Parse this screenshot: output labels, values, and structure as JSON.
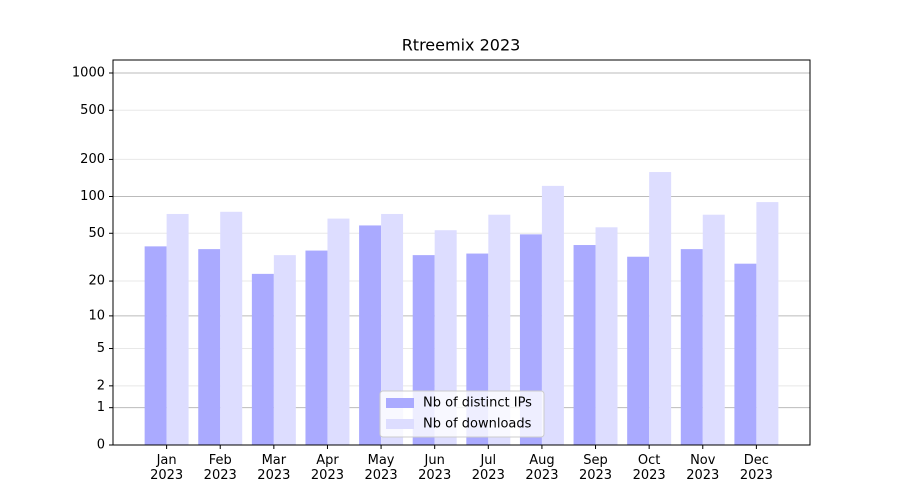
{
  "chart_data": {
    "type": "bar",
    "title": "Rtreemix 2023",
    "categories": [
      "Jan\n2023",
      "Feb\n2023",
      "Mar\n2023",
      "Apr\n2023",
      "May\n2023",
      "Jun\n2023",
      "Jul\n2023",
      "Aug\n2023",
      "Sep\n2023",
      "Oct\n2023",
      "Nov\n2023",
      "Dec\n2023"
    ],
    "series": [
      {
        "name": "Nb of distinct IPs",
        "color": "#aaaaff",
        "values": [
          39,
          37,
          23,
          36,
          58,
          33,
          34,
          49,
          40,
          32,
          37,
          28
        ]
      },
      {
        "name": "Nb of downloads",
        "color": "#ddddff",
        "values": [
          72,
          75,
          33,
          66,
          72,
          53,
          71,
          122,
          56,
          158,
          71,
          90
        ]
      }
    ],
    "y_scale": "log1p",
    "ylim": [
      0,
      1273
    ],
    "yticks": [
      0,
      1,
      2,
      5,
      10,
      20,
      50,
      100,
      200,
      500,
      1000
    ],
    "grid": true,
    "legend": "lower center"
  }
}
